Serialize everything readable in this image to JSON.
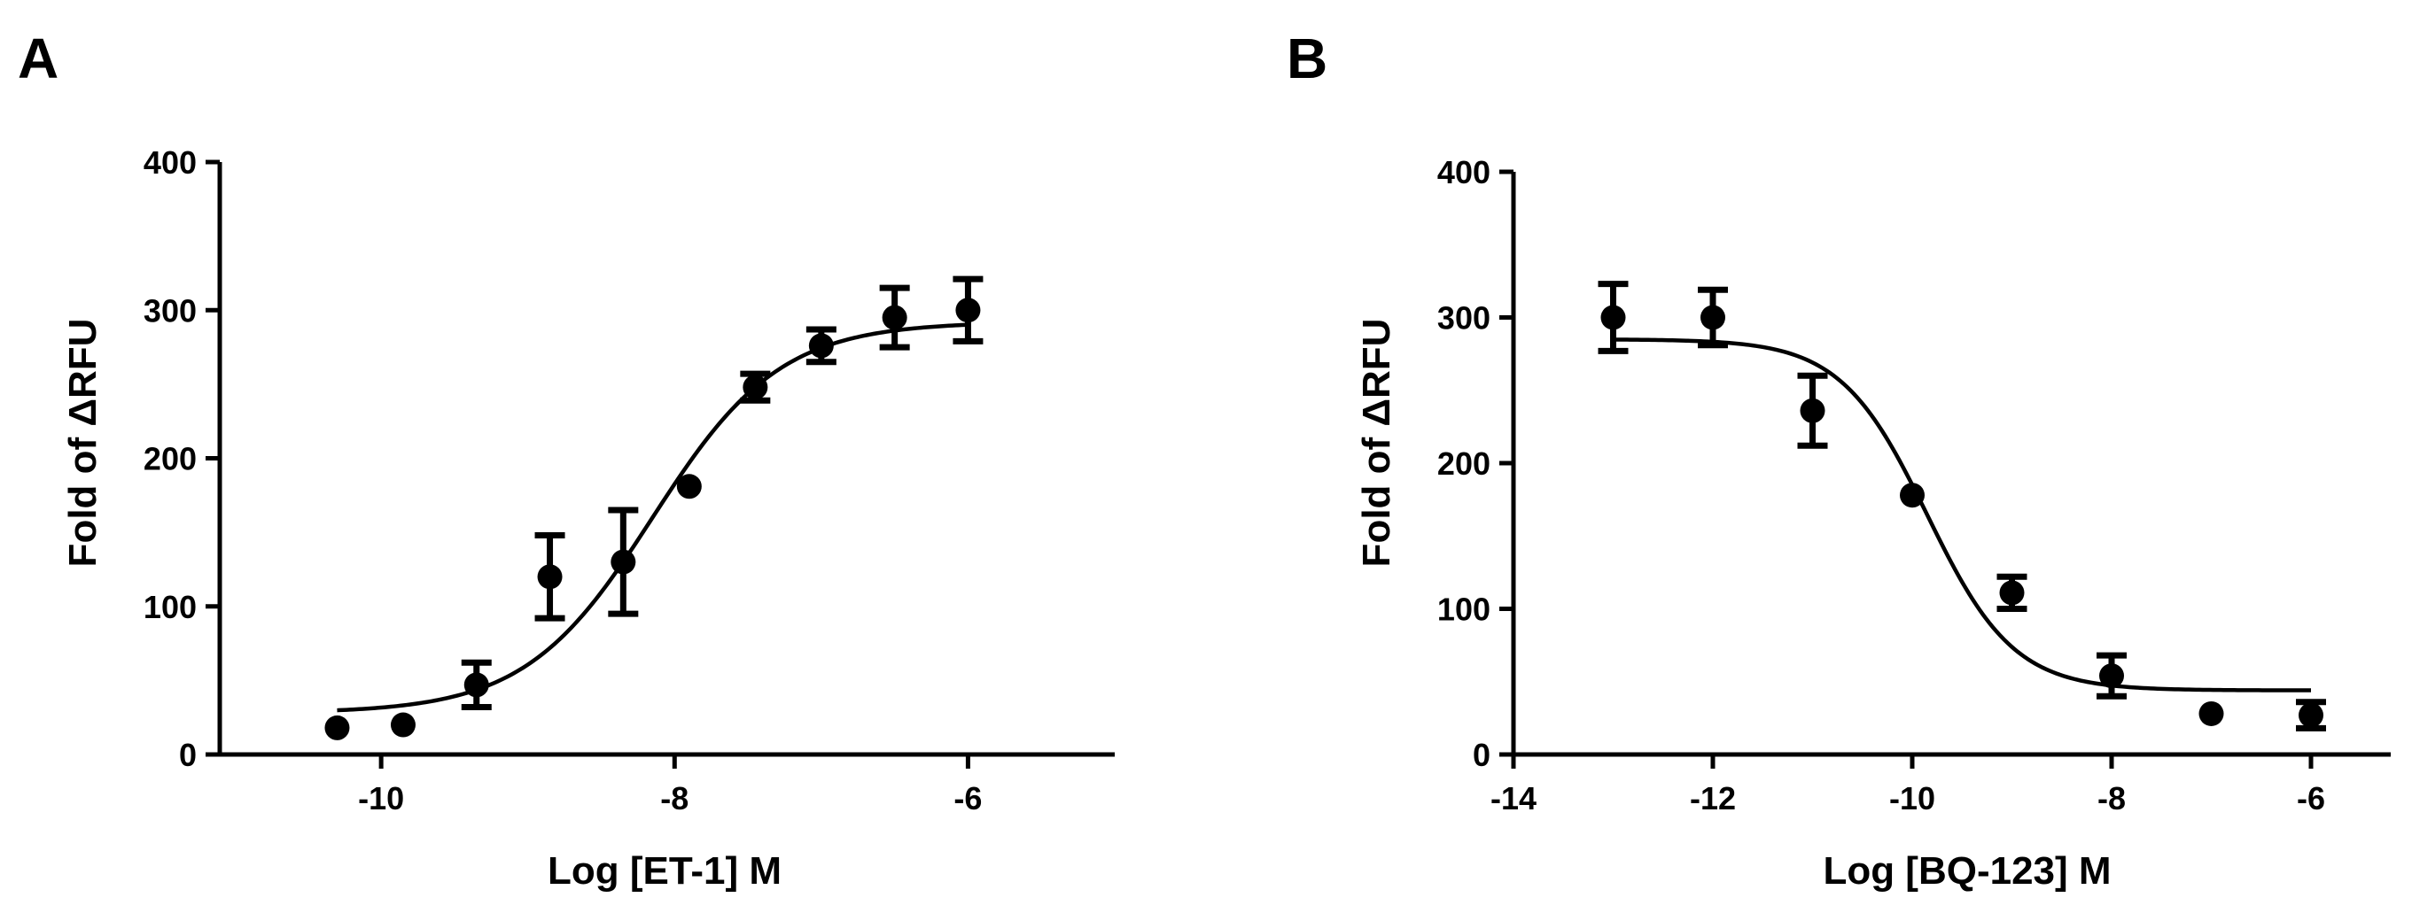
{
  "chart_data": [
    {
      "panel": "A",
      "type": "scatter",
      "xlabel": "Log [ET-1] M",
      "ylabel": "Fold of ΔRFU",
      "xlim": [
        -11.1,
        -5.0
      ],
      "ylim": [
        0,
        400
      ],
      "xticks": [
        -10,
        -8,
        -6
      ],
      "yticks": [
        0,
        100,
        200,
        300,
        400
      ],
      "fit": {
        "model": "sigmoidal dose-response",
        "bottom": 28,
        "top": 292,
        "logEC50": -8.15,
        "hill": 1.0,
        "x_range": [
          -10.3,
          -6.0
        ]
      },
      "points": [
        {
          "x": -10.3,
          "y": 18,
          "err": 0
        },
        {
          "x": -9.85,
          "y": 20,
          "err": 0
        },
        {
          "x": -9.35,
          "y": 47,
          "err": 15
        },
        {
          "x": -8.85,
          "y": 120,
          "err": 28
        },
        {
          "x": -8.35,
          "y": 130,
          "err": 35
        },
        {
          "x": -7.9,
          "y": 181,
          "err": 0
        },
        {
          "x": -7.45,
          "y": 248,
          "err": 9
        },
        {
          "x": -7.0,
          "y": 276,
          "err": 11
        },
        {
          "x": -6.5,
          "y": 295,
          "err": 20
        },
        {
          "x": -6.0,
          "y": 300,
          "err": 21
        }
      ]
    },
    {
      "panel": "B",
      "type": "scatter",
      "xlabel": "Log [BQ-123] M",
      "ylabel": "Fold of ΔRFU",
      "xlim": [
        -14,
        -5.2
      ],
      "ylim": [
        0,
        400
      ],
      "xticks": [
        -14,
        -12,
        -10,
        -8,
        -6
      ],
      "yticks": [
        0,
        100,
        200,
        300,
        400
      ],
      "fit": {
        "model": "sigmoidal dose-response",
        "bottom": 44,
        "top": 285,
        "logIC50": -9.85,
        "hill": -1.0,
        "x_range": [
          -13.0,
          -6.0
        ]
      },
      "points": [
        {
          "x": -13,
          "y": 300,
          "err": 23
        },
        {
          "x": -12,
          "y": 300,
          "err": 19
        },
        {
          "x": -11,
          "y": 236,
          "err": 24
        },
        {
          "x": -10,
          "y": 178,
          "err": 0
        },
        {
          "x": -9,
          "y": 111,
          "err": 11
        },
        {
          "x": -8,
          "y": 54,
          "err": 14
        },
        {
          "x": -7,
          "y": 28,
          "err": 0
        },
        {
          "x": -6,
          "y": 27,
          "err": 9
        }
      ]
    }
  ]
}
